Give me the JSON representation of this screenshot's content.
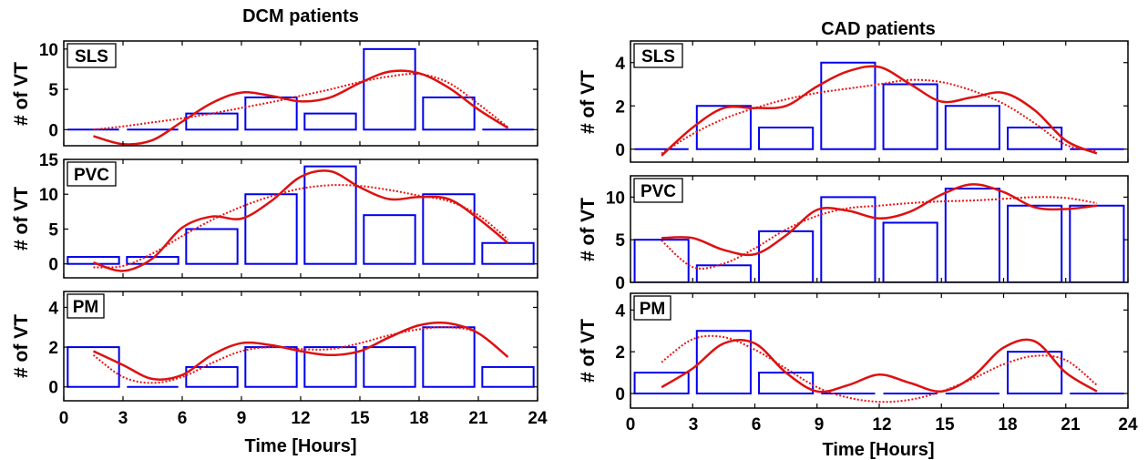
{
  "colors": {
    "bars": "#0000ee",
    "fit_solid": "#dd1111",
    "fit_dotted": "#ee1111",
    "frame": "#000000"
  },
  "columns": [
    {
      "title": "DCM patients",
      "xlabel": "Time [Hours]",
      "xticks": [
        "0",
        "3",
        "6",
        "9",
        "12",
        "15",
        "18",
        "21",
        "24"
      ]
    },
    {
      "title": "CAD patients",
      "xlabel": "Time [Hours]",
      "xticks": [
        "0",
        "3",
        "6",
        "9",
        "12",
        "15",
        "18",
        "21",
        "24"
      ]
    }
  ],
  "chart_data": [
    {
      "type": "bar",
      "group": "DCM patients",
      "panel": "SLS",
      "ylabel": "# of VT",
      "xlim": [
        0,
        24
      ],
      "ylim": [
        -2,
        11
      ],
      "yticks": [
        0,
        5,
        10
      ],
      "bin_centers": [
        1.5,
        4.5,
        7.5,
        10.5,
        13.5,
        16.5,
        19.5,
        22.5
      ],
      "values": [
        0,
        0,
        2,
        4,
        2,
        10,
        4,
        0
      ],
      "fit_solid": {
        "x": [
          1.5,
          3,
          4.5,
          6,
          7.5,
          9,
          10.5,
          12,
          13.5,
          15,
          16.5,
          18,
          19.5,
          21,
          22.5
        ],
        "y": [
          -0.8,
          -1.8,
          -1.3,
          1.0,
          3.3,
          4.6,
          4.2,
          3.5,
          4.0,
          5.8,
          7.2,
          7.0,
          5.2,
          2.5,
          0.2
        ]
      },
      "fit_dotted": {
        "x": [
          1.5,
          3,
          4.5,
          6,
          7.5,
          9,
          10.5,
          12,
          13.5,
          15,
          16.5,
          18,
          19.5,
          21,
          22.5
        ],
        "y": [
          0.0,
          0.4,
          0.9,
          1.4,
          2.0,
          2.7,
          3.4,
          4.2,
          5.0,
          5.9,
          6.6,
          6.9,
          5.8,
          3.2,
          0.3
        ]
      }
    },
    {
      "type": "bar",
      "group": "DCM patients",
      "panel": "PVC",
      "ylabel": "# of VT",
      "xlim": [
        0,
        24
      ],
      "ylim": [
        -2,
        15
      ],
      "yticks": [
        0,
        5,
        10,
        15
      ],
      "bin_centers": [
        1.5,
        4.5,
        7.5,
        10.5,
        13.5,
        16.5,
        19.5,
        22.5
      ],
      "values": [
        1,
        1,
        5,
        10,
        14,
        7,
        10,
        3
      ],
      "fit_solid": {
        "x": [
          1.5,
          3,
          4.5,
          6,
          7.5,
          9,
          10.5,
          12,
          13.5,
          15,
          16.5,
          18,
          19.5,
          21,
          22.5
        ],
        "y": [
          0.2,
          -1.0,
          0.8,
          5.2,
          6.8,
          6.5,
          9.0,
          12.5,
          13.3,
          11.0,
          9.3,
          9.6,
          9.3,
          6.5,
          3.0
        ]
      },
      "fit_dotted": {
        "x": [
          1.5,
          3,
          4.5,
          6,
          7.5,
          9,
          10.5,
          12,
          13.5,
          15,
          16.5,
          18,
          19.5,
          21,
          22.5
        ],
        "y": [
          -0.5,
          -0.3,
          1.5,
          4.0,
          6.3,
          8.2,
          9.7,
          10.8,
          11.3,
          11.2,
          10.6,
          9.8,
          9.0,
          7.0,
          3.5
        ]
      }
    },
    {
      "type": "bar",
      "group": "DCM patients",
      "panel": "PM",
      "ylabel": "# of VT",
      "xlim": [
        0,
        24
      ],
      "ylim": [
        -0.7,
        4.8
      ],
      "yticks": [
        0,
        2,
        4
      ],
      "bin_centers": [
        1.5,
        4.5,
        7.5,
        10.5,
        13.5,
        16.5,
        19.5,
        22.5
      ],
      "values": [
        2,
        0,
        1,
        2,
        2,
        2,
        3,
        1
      ],
      "fit_solid": {
        "x": [
          1.5,
          3,
          4.5,
          6,
          7.5,
          9,
          10.5,
          12,
          13.5,
          15,
          16.5,
          18,
          19.5,
          21,
          22.5
        ],
        "y": [
          1.8,
          1.1,
          0.4,
          0.6,
          1.6,
          2.2,
          2.1,
          1.8,
          1.6,
          1.8,
          2.5,
          3.1,
          3.2,
          2.7,
          1.5
        ]
      },
      "fit_dotted": {
        "x": [
          1.5,
          3,
          4.5,
          6,
          7.5,
          9,
          10.5,
          12,
          13.5,
          15,
          16.5,
          18,
          19.5,
          21,
          22.5
        ],
        "y": [
          1.6,
          0.5,
          0.2,
          0.5,
          1.2,
          1.8,
          2.0,
          1.9,
          1.9,
          2.2,
          2.6,
          2.9,
          3.0,
          2.7,
          1.5
        ]
      }
    },
    {
      "type": "bar",
      "group": "CAD patients",
      "panel": "SLS",
      "ylabel": "# of VT",
      "xlim": [
        0,
        24
      ],
      "ylim": [
        -0.6,
        5
      ],
      "yticks": [
        0,
        2,
        4
      ],
      "bin_centers": [
        1.5,
        4.5,
        7.5,
        10.5,
        13.5,
        16.5,
        19.5,
        22.5
      ],
      "values": [
        0,
        2,
        1,
        4,
        3,
        2,
        1,
        0
      ],
      "fit_solid": {
        "x": [
          1.5,
          3,
          4.5,
          6,
          7.5,
          9,
          10.5,
          12,
          13.5,
          15,
          16.5,
          18,
          19.5,
          21,
          22.5
        ],
        "y": [
          -0.3,
          1.0,
          1.9,
          1.9,
          2.0,
          2.9,
          3.6,
          3.8,
          3.0,
          2.2,
          2.4,
          2.6,
          1.8,
          0.4,
          -0.2
        ]
      },
      "fit_dotted": {
        "x": [
          1.5,
          3,
          4.5,
          6,
          7.5,
          9,
          10.5,
          12,
          13.5,
          15,
          16.5,
          18,
          19.5,
          21,
          22.5
        ],
        "y": [
          -0.2,
          0.7,
          1.4,
          1.9,
          2.3,
          2.6,
          2.8,
          3.0,
          3.2,
          3.1,
          2.7,
          2.1,
          1.2,
          0.2,
          -0.1
        ]
      }
    },
    {
      "type": "bar",
      "group": "CAD patients",
      "panel": "PVC",
      "ylabel": "# of VT",
      "xlim": [
        0,
        24
      ],
      "ylim": [
        0,
        12.5
      ],
      "yticks": [
        0,
        5,
        10
      ],
      "bin_centers": [
        1.5,
        4.5,
        7.5,
        10.5,
        13.5,
        16.5,
        19.5,
        22.5
      ],
      "values": [
        5,
        2,
        6,
        10,
        7,
        11,
        9,
        9
      ],
      "fit_solid": {
        "x": [
          1.5,
          3,
          4.5,
          6,
          7.5,
          9,
          10.5,
          12,
          13.5,
          15,
          16.5,
          18,
          19.5,
          21,
          22.5
        ],
        "y": [
          5.2,
          5.2,
          3.8,
          3.3,
          5.5,
          8.5,
          8.4,
          7.5,
          8.3,
          10.3,
          11.5,
          10.6,
          8.8,
          8.6,
          9.0
        ]
      },
      "fit_dotted": {
        "x": [
          1.5,
          3,
          4.5,
          6,
          7.5,
          9,
          10.5,
          12,
          13.5,
          15,
          16.5,
          18,
          19.5,
          21,
          22.5
        ],
        "y": [
          4.9,
          1.8,
          2.2,
          4.0,
          6.2,
          7.8,
          8.7,
          9.0,
          9.3,
          9.5,
          9.6,
          9.8,
          10.0,
          9.9,
          9.3
        ]
      }
    },
    {
      "type": "bar",
      "group": "CAD patients",
      "panel": "PM",
      "ylabel": "# of VT",
      "xlim": [
        0,
        24
      ],
      "ylim": [
        -0.7,
        4.8
      ],
      "yticks": [
        0,
        2,
        4
      ],
      "bin_centers": [
        1.5,
        4.5,
        7.5,
        10.5,
        13.5,
        16.5,
        19.5,
        22.5
      ],
      "values": [
        1,
        3,
        1,
        0,
        0,
        0,
        2,
        0
      ],
      "fit_solid": {
        "x": [
          1.5,
          3,
          4.5,
          6,
          7.5,
          9,
          10.5,
          12,
          13.5,
          15,
          16.5,
          18,
          19.5,
          21,
          22.5
        ],
        "y": [
          0.3,
          1.2,
          2.4,
          2.4,
          1.0,
          0.1,
          0.4,
          0.9,
          0.5,
          0.1,
          0.8,
          2.2,
          2.5,
          1.0,
          0.1
        ]
      },
      "fit_dotted": {
        "x": [
          1.5,
          3,
          4.5,
          6,
          7.5,
          9,
          10.5,
          12,
          13.5,
          15,
          16.5,
          18,
          19.5,
          21,
          22.5
        ],
        "y": [
          1.5,
          2.6,
          2.7,
          2.1,
          1.2,
          0.3,
          -0.2,
          -0.4,
          -0.3,
          0.1,
          0.7,
          1.4,
          1.8,
          1.6,
          0.4
        ]
      }
    }
  ]
}
